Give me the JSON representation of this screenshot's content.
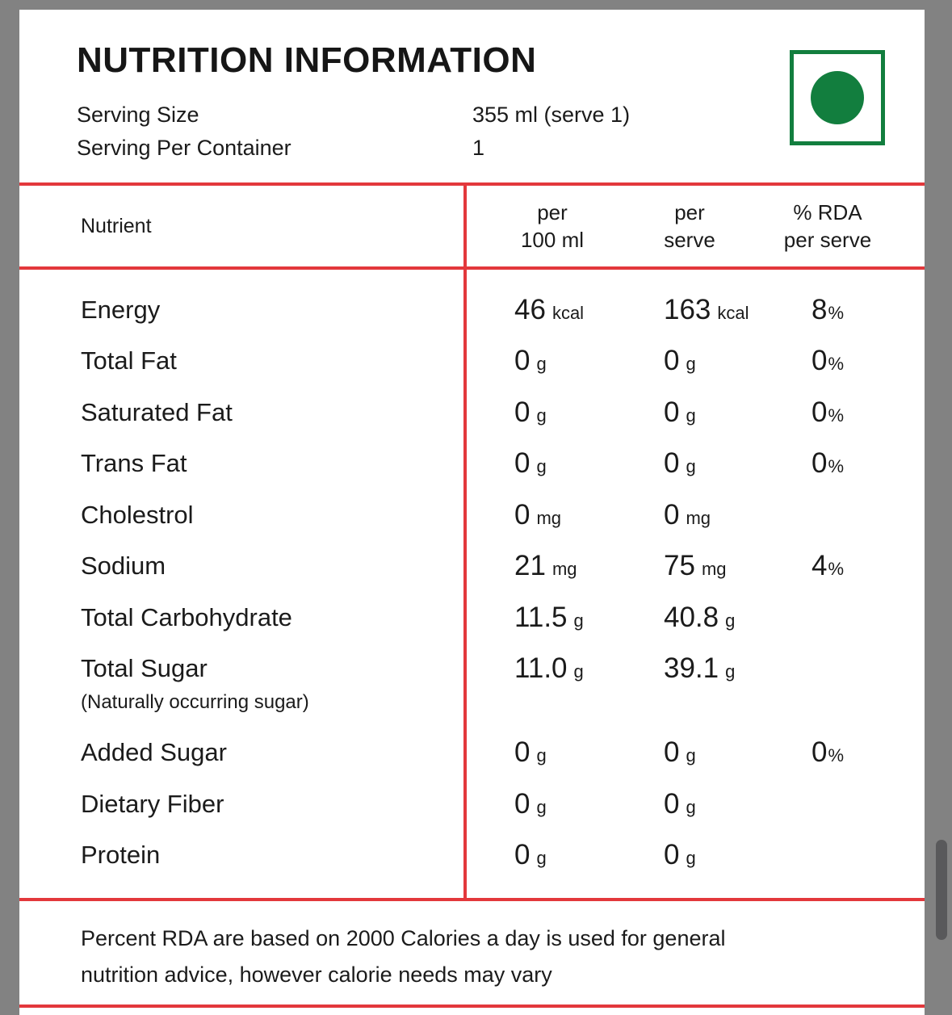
{
  "header": {
    "title": "NUTRITION INFORMATION",
    "serving_info": [
      {
        "label": "Serving Size",
        "value": "355 ml (serve 1)"
      },
      {
        "label": "Serving Per Container",
        "value": "1"
      }
    ],
    "veg_symbol_color": "#127e3e"
  },
  "table": {
    "header": {
      "nutrient": "Nutrient",
      "per_100ml": [
        "per",
        "100 ml"
      ],
      "per_serve": [
        "per",
        "serve"
      ],
      "rda": [
        "% RDA",
        "per serve"
      ]
    },
    "rows": [
      {
        "nutrient": "Energy",
        "v1n": "46",
        "v1u": "kcal",
        "v2n": "163",
        "v2u": "kcal",
        "v3n": "8",
        "v3u": "%"
      },
      {
        "nutrient": "Total Fat",
        "v1n": "0",
        "v1u": "g",
        "v2n": "0",
        "v2u": "g",
        "v3n": "0",
        "v3u": "%"
      },
      {
        "nutrient": "Saturated Fat",
        "v1n": "0",
        "v1u": "g",
        "v2n": "0",
        "v2u": "g",
        "v3n": "0",
        "v3u": "%"
      },
      {
        "nutrient": "Trans Fat",
        "v1n": "0",
        "v1u": "g",
        "v2n": "0",
        "v2u": "g",
        "v3n": "0",
        "v3u": "%"
      },
      {
        "nutrient": "Cholestrol",
        "v1n": "0",
        "v1u": "mg",
        "v2n": "0",
        "v2u": "mg"
      },
      {
        "nutrient": "Sodium",
        "v1n": "21",
        "v1u": "mg",
        "v2n": "75",
        "v2u": "mg",
        "v3n": "4",
        "v3u": "%"
      },
      {
        "nutrient": "Total Carbohydrate",
        "v1n": "11.5",
        "v1u": "g",
        "v2n": "40.8",
        "v2u": "g"
      },
      {
        "nutrient": "Total Sugar",
        "note": "(Naturally occurring sugar)",
        "v1n": "11.0",
        "v1u": "g",
        "v2n": "39.1",
        "v2u": "g"
      },
      {
        "nutrient": "Added Sugar",
        "v1n": "0",
        "v1u": "g",
        "v2n": "0",
        "v2u": "g",
        "v3n": "0",
        "v3u": "%"
      },
      {
        "nutrient": "Dietary Fiber",
        "v1n": "0",
        "v1u": "g",
        "v2n": "0",
        "v2u": "g"
      },
      {
        "nutrient": "Protein",
        "v1n": "0",
        "v1u": "g",
        "v2n": "0",
        "v2u": "g"
      }
    ]
  },
  "footnote": [
    "Percent RDA are based on 2000 Calories a day is used for general",
    "nutrition advice, however calorie needs may vary"
  ],
  "colors": {
    "accent_red": "#e3383c",
    "veg_green": "#127e3e",
    "frame_gray": "#828282",
    "scrollbar_gray": "#59595b"
  }
}
